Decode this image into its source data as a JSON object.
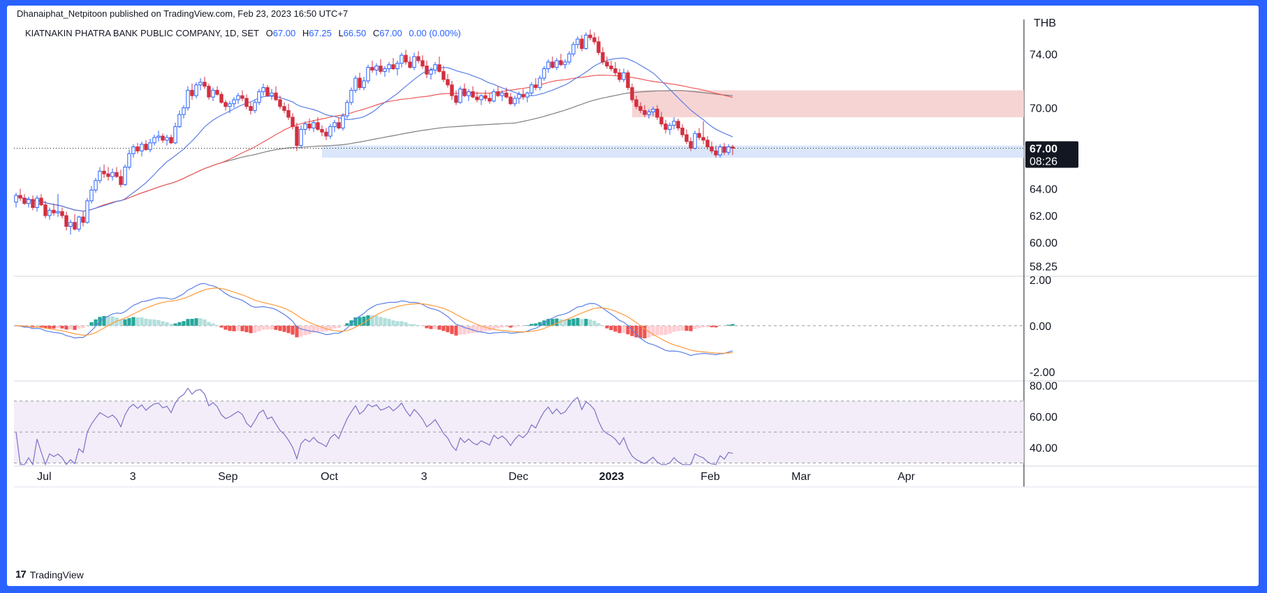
{
  "header": {
    "published": "Dhanaiphat_Netpitoon published on TradingView.com, Feb 23, 2023 16:50 UTC+7",
    "symbol": "KIATNAKIN PHATRA BANK PUBLIC COMPANY, 1D, SET",
    "o_label": "O",
    "o": "67.00",
    "h_label": "H",
    "h": "67.25",
    "l_label": "L",
    "l": "66.50",
    "c_label": "C",
    "c": "67.00",
    "change": "0.00 (0.00%)"
  },
  "footer": {
    "logo": "17",
    "brand": "TradingView"
  },
  "colors": {
    "up": "#2962ff",
    "down": "#d32f3f",
    "ma_fast": "#5b7fe6",
    "ma_mid": "#ee5a5a",
    "ma_slow": "#7f7f7f",
    "macd": "#5b7fe6",
    "signal": "#ff9a3c",
    "hist_pos": "#26a69a",
    "hist_neg": "#ef5350",
    "rsi": "#7e6fc7"
  },
  "chart_data": [
    {
      "type": "candlestick",
      "currency": "THB",
      "x_labels": [
        "Jul",
        "3",
        "Sep",
        "Oct",
        "3",
        "Dec",
        "2023",
        "Feb",
        "Mar",
        "Apr"
      ],
      "y_ticks": [
        "74.00",
        "70.00",
        "64.00",
        "62.00",
        "60.00",
        "58.25"
      ],
      "last_price": "67.00",
      "countdown": "08:26",
      "ohlc": [
        [
          63.0,
          63.7,
          62.6,
          63.5
        ],
        [
          63.5,
          64.0,
          63.1,
          63.3
        ],
        [
          63.3,
          63.6,
          62.8,
          62.9
        ],
        [
          62.9,
          63.4,
          62.6,
          63.2
        ],
        [
          63.2,
          63.5,
          62.4,
          62.6
        ],
        [
          62.6,
          63.5,
          62.3,
          63.3
        ],
        [
          63.3,
          63.6,
          62.7,
          62.8
        ],
        [
          62.8,
          63.1,
          61.8,
          62.0
        ],
        [
          62.0,
          62.6,
          61.7,
          62.4
        ],
        [
          62.4,
          62.9,
          62.0,
          62.2
        ],
        [
          62.2,
          63.6,
          61.9,
          62.3
        ],
        [
          62.3,
          62.6,
          61.8,
          62.0
        ],
        [
          62.0,
          62.3,
          60.9,
          61.2
        ],
        [
          61.2,
          61.7,
          60.6,
          61.5
        ],
        [
          61.5,
          62.1,
          60.9,
          61.0
        ],
        [
          61.0,
          62.0,
          60.8,
          61.9
        ],
        [
          61.9,
          62.3,
          61.2,
          61.5
        ],
        [
          61.5,
          63.3,
          61.4,
          63.1
        ],
        [
          63.1,
          64.2,
          62.9,
          63.9
        ],
        [
          63.9,
          64.8,
          63.7,
          64.6
        ],
        [
          64.6,
          65.6,
          64.4,
          65.3
        ],
        [
          65.3,
          65.8,
          64.8,
          65.1
        ],
        [
          65.1,
          65.6,
          64.6,
          64.9
        ],
        [
          64.9,
          65.5,
          64.6,
          65.2
        ],
        [
          65.2,
          65.6,
          64.8,
          64.9
        ],
        [
          64.9,
          65.4,
          64.1,
          64.3
        ],
        [
          64.3,
          65.8,
          64.2,
          65.6
        ],
        [
          65.6,
          66.9,
          65.4,
          66.6
        ],
        [
          66.6,
          67.3,
          66.3,
          67.1
        ],
        [
          67.1,
          67.4,
          66.6,
          66.8
        ],
        [
          66.8,
          67.5,
          66.4,
          67.3
        ],
        [
          67.3,
          67.6,
          66.8,
          66.9
        ],
        [
          66.9,
          67.7,
          66.7,
          67.4
        ],
        [
          67.4,
          68.0,
          67.2,
          67.8
        ],
        [
          67.8,
          68.3,
          67.5,
          67.9
        ],
        [
          67.9,
          68.1,
          67.4,
          67.6
        ],
        [
          67.6,
          68.0,
          67.2,
          67.8
        ],
        [
          67.8,
          68.0,
          67.3,
          67.4
        ],
        [
          67.4,
          68.9,
          67.3,
          68.6
        ],
        [
          68.6,
          69.8,
          68.5,
          69.5
        ],
        [
          69.5,
          70.2,
          69.2,
          70.0
        ],
        [
          70.0,
          71.6,
          69.8,
          71.3
        ],
        [
          71.3,
          71.8,
          70.6,
          70.9
        ],
        [
          70.9,
          71.9,
          70.7,
          71.7
        ],
        [
          71.7,
          72.2,
          71.3,
          71.9
        ],
        [
          71.9,
          72.3,
          71.4,
          71.6
        ],
        [
          71.6,
          71.8,
          70.6,
          70.8
        ],
        [
          70.8,
          71.5,
          70.5,
          71.3
        ],
        [
          71.3,
          71.6,
          70.9,
          71.0
        ],
        [
          71.0,
          71.2,
          70.3,
          70.4
        ],
        [
          70.4,
          70.6,
          69.8,
          70.1
        ],
        [
          70.1,
          70.5,
          69.6,
          70.3
        ],
        [
          70.3,
          70.8,
          70.0,
          70.6
        ],
        [
          70.6,
          71.1,
          70.3,
          70.9
        ],
        [
          70.9,
          71.3,
          70.5,
          70.7
        ],
        [
          70.7,
          71.0,
          69.9,
          70.1
        ],
        [
          70.1,
          70.4,
          69.5,
          69.8
        ],
        [
          69.8,
          70.6,
          69.6,
          70.4
        ],
        [
          70.4,
          71.4,
          70.2,
          71.2
        ],
        [
          71.2,
          71.8,
          70.9,
          71.5
        ],
        [
          71.5,
          71.7,
          70.8,
          70.9
        ],
        [
          70.9,
          71.4,
          70.6,
          71.1
        ],
        [
          71.1,
          71.6,
          70.5,
          70.6
        ],
        [
          70.6,
          70.9,
          69.9,
          70.1
        ],
        [
          70.1,
          70.4,
          69.6,
          69.8
        ],
        [
          69.8,
          70.3,
          69.1,
          69.3
        ],
        [
          69.3,
          69.6,
          68.4,
          68.6
        ],
        [
          68.6,
          68.9,
          66.8,
          67.2
        ],
        [
          67.2,
          68.7,
          67.0,
          68.4
        ],
        [
          68.4,
          69.0,
          68.0,
          68.8
        ],
        [
          68.8,
          69.2,
          68.3,
          68.5
        ],
        [
          68.5,
          69.1,
          68.2,
          68.9
        ],
        [
          68.9,
          69.3,
          68.3,
          68.4
        ],
        [
          68.4,
          68.7,
          67.9,
          68.2
        ],
        [
          68.2,
          68.5,
          67.6,
          67.9
        ],
        [
          67.9,
          68.8,
          67.7,
          68.6
        ],
        [
          68.6,
          69.1,
          68.2,
          68.9
        ],
        [
          68.9,
          69.3,
          68.4,
          68.5
        ],
        [
          68.5,
          69.6,
          68.3,
          69.4
        ],
        [
          69.4,
          70.6,
          69.2,
          70.4
        ],
        [
          70.4,
          71.5,
          70.2,
          71.3
        ],
        [
          71.3,
          72.4,
          71.1,
          72.2
        ],
        [
          72.2,
          72.6,
          71.3,
          71.5
        ],
        [
          71.5,
          72.3,
          71.3,
          72.0
        ],
        [
          72.0,
          73.2,
          71.8,
          73.0
        ],
        [
          73.0,
          73.5,
          72.6,
          72.8
        ],
        [
          72.8,
          73.3,
          72.4,
          73.1
        ],
        [
          73.1,
          73.6,
          72.5,
          72.7
        ],
        [
          72.7,
          73.1,
          72.3,
          72.9
        ],
        [
          72.9,
          73.4,
          72.6,
          73.2
        ],
        [
          73.2,
          73.7,
          72.8,
          72.9
        ],
        [
          72.9,
          73.5,
          72.4,
          73.3
        ],
        [
          73.3,
          74.1,
          73.0,
          73.9
        ],
        [
          73.9,
          74.3,
          73.2,
          73.4
        ],
        [
          73.4,
          73.8,
          72.9,
          73.0
        ],
        [
          73.0,
          74.1,
          72.8,
          73.8
        ],
        [
          73.8,
          74.2,
          73.3,
          73.5
        ],
        [
          73.5,
          73.9,
          72.9,
          73.1
        ],
        [
          73.1,
          73.5,
          72.2,
          72.5
        ],
        [
          72.5,
          73.0,
          72.1,
          72.8
        ],
        [
          72.8,
          73.4,
          72.5,
          73.2
        ],
        [
          73.2,
          73.8,
          72.6,
          72.7
        ],
        [
          72.7,
          73.1,
          71.9,
          72.1
        ],
        [
          72.1,
          72.5,
          71.5,
          71.7
        ],
        [
          71.7,
          72.0,
          70.6,
          70.9
        ],
        [
          70.9,
          71.3,
          70.2,
          70.4
        ],
        [
          70.4,
          71.6,
          70.3,
          71.4
        ],
        [
          71.4,
          71.8,
          70.8,
          70.9
        ],
        [
          70.9,
          71.4,
          70.5,
          71.2
        ],
        [
          71.2,
          71.6,
          70.7,
          70.8
        ],
        [
          70.8,
          71.2,
          70.4,
          70.6
        ],
        [
          70.6,
          71.0,
          70.2,
          70.9
        ],
        [
          70.9,
          71.3,
          70.5,
          70.7
        ],
        [
          70.7,
          71.1,
          70.3,
          70.5
        ],
        [
          70.5,
          71.4,
          70.4,
          71.2
        ],
        [
          71.2,
          71.6,
          70.8,
          70.9
        ],
        [
          70.9,
          71.3,
          70.5,
          71.1
        ],
        [
          71.1,
          71.5,
          70.7,
          70.8
        ],
        [
          70.8,
          71.1,
          70.2,
          70.3
        ],
        [
          70.3,
          70.9,
          70.1,
          70.7
        ],
        [
          70.7,
          71.2,
          70.3,
          71.0
        ],
        [
          71.0,
          71.4,
          70.6,
          70.8
        ],
        [
          70.8,
          71.2,
          70.4,
          71.1
        ],
        [
          71.1,
          71.9,
          70.9,
          71.7
        ],
        [
          71.7,
          72.2,
          71.3,
          71.5
        ],
        [
          71.5,
          72.4,
          71.3,
          72.2
        ],
        [
          72.2,
          73.1,
          72.0,
          72.9
        ],
        [
          72.9,
          73.6,
          72.6,
          73.4
        ],
        [
          73.4,
          73.8,
          72.9,
          73.0
        ],
        [
          73.0,
          73.7,
          72.8,
          73.5
        ],
        [
          73.5,
          74.0,
          73.1,
          73.2
        ],
        [
          73.2,
          73.6,
          72.9,
          73.4
        ],
        [
          73.4,
          74.2,
          73.2,
          74.0
        ],
        [
          74.0,
          74.9,
          73.8,
          74.7
        ],
        [
          74.7,
          75.3,
          74.4,
          75.1
        ],
        [
          75.1,
          75.4,
          74.2,
          74.4
        ],
        [
          74.4,
          75.6,
          74.3,
          75.4
        ],
        [
          75.4,
          75.8,
          75.0,
          75.2
        ],
        [
          75.2,
          75.6,
          74.7,
          74.9
        ],
        [
          74.9,
          75.3,
          73.9,
          74.1
        ],
        [
          74.1,
          74.5,
          73.2,
          73.4
        ],
        [
          73.4,
          73.8,
          72.9,
          73.1
        ],
        [
          73.1,
          73.5,
          72.7,
          72.9
        ],
        [
          72.9,
          73.4,
          72.4,
          72.6
        ],
        [
          72.6,
          72.9,
          71.9,
          72.1
        ],
        [
          72.1,
          72.9,
          71.9,
          72.6
        ],
        [
          72.6,
          72.8,
          71.3,
          71.5
        ],
        [
          71.5,
          71.8,
          70.4,
          70.6
        ],
        [
          70.6,
          70.9,
          69.9,
          70.1
        ],
        [
          70.1,
          70.4,
          69.6,
          69.8
        ],
        [
          69.8,
          70.2,
          69.3,
          69.5
        ],
        [
          69.5,
          69.9,
          69.2,
          69.7
        ],
        [
          69.7,
          70.1,
          69.4,
          69.9
        ],
        [
          69.9,
          70.2,
          69.1,
          69.3
        ],
        [
          69.3,
          69.7,
          68.6,
          68.8
        ],
        [
          68.8,
          69.1,
          68.1,
          68.4
        ],
        [
          68.4,
          68.9,
          68.0,
          68.7
        ],
        [
          68.7,
          69.3,
          68.4,
          69.0
        ],
        [
          69.0,
          69.2,
          68.3,
          68.5
        ],
        [
          68.5,
          68.8,
          67.8,
          68.0
        ],
        [
          68.0,
          68.4,
          67.3,
          67.5
        ],
        [
          67.5,
          67.8,
          66.8,
          67.0
        ],
        [
          67.0,
          68.3,
          66.9,
          68.1
        ],
        [
          68.1,
          68.5,
          67.6,
          67.8
        ],
        [
          67.8,
          69.0,
          67.3,
          67.6
        ],
        [
          67.6,
          67.9,
          66.9,
          67.1
        ],
        [
          67.1,
          67.5,
          66.6,
          66.8
        ],
        [
          66.8,
          67.2,
          66.3,
          66.5
        ],
        [
          66.5,
          67.3,
          66.3,
          67.1
        ],
        [
          67.1,
          67.4,
          66.5,
          66.7
        ],
        [
          66.7,
          67.3,
          66.5,
          67.1
        ],
        [
          67.1,
          67.25,
          66.5,
          67.0
        ]
      ],
      "zones": [
        {
          "name": "resistance",
          "from_bar": 147,
          "to_bar": 999,
          "low": 69.3,
          "high": 71.3,
          "color": "#f6cfcf"
        },
        {
          "name": "support",
          "from_bar": 73,
          "to_bar": 999,
          "low": 66.3,
          "high": 67.2,
          "color": "#d7e3fb"
        }
      ]
    },
    {
      "type": "line",
      "name": "MACD",
      "y_ticks": [
        "2.00",
        "0.00",
        "-2.00"
      ],
      "ylim": [
        -2.4,
        2.15
      ]
    },
    {
      "type": "line",
      "name": "RSI",
      "y_ticks": [
        "80.00",
        "60.00",
        "40.00"
      ],
      "bands": [
        30,
        50,
        70
      ],
      "ylim": [
        28,
        83
      ]
    }
  ]
}
